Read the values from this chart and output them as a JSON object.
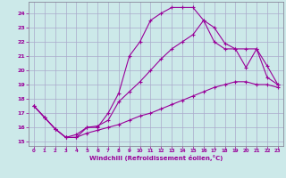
{
  "xlabel": "Windchill (Refroidissement éolien,°C)",
  "bg_color": "#cce9e9",
  "grid_color": "#aaaacc",
  "line_color": "#990099",
  "xlim": [
    -0.5,
    23.5
  ],
  "ylim": [
    14.7,
    24.8
  ],
  "yticks": [
    15,
    16,
    17,
    18,
    19,
    20,
    21,
    22,
    23,
    24
  ],
  "xticks": [
    0,
    1,
    2,
    3,
    4,
    5,
    6,
    7,
    8,
    9,
    10,
    11,
    12,
    13,
    14,
    15,
    16,
    17,
    18,
    19,
    20,
    21,
    22,
    23
  ],
  "line1_x": [
    0,
    1,
    2,
    3,
    4,
    5,
    6,
    7,
    8,
    9,
    10,
    11,
    12,
    13,
    14,
    15,
    16,
    17,
    18,
    19,
    20,
    21,
    22,
    23
  ],
  "line1_y": [
    17.5,
    16.7,
    15.9,
    15.3,
    15.3,
    16.0,
    16.0,
    17.0,
    18.4,
    21.0,
    22.0,
    23.5,
    24.0,
    24.4,
    24.4,
    24.4,
    23.5,
    23.0,
    21.9,
    21.5,
    20.2,
    21.5,
    20.3,
    19.0
  ],
  "line2_x": [
    0,
    1,
    2,
    3,
    4,
    5,
    6,
    7,
    8,
    9,
    10,
    11,
    12,
    13,
    14,
    15,
    16,
    17,
    18,
    19,
    20,
    21,
    22,
    23
  ],
  "line2_y": [
    17.5,
    16.7,
    15.9,
    15.3,
    15.5,
    16.0,
    16.1,
    16.5,
    17.8,
    18.5,
    19.2,
    20.0,
    20.8,
    21.5,
    22.0,
    22.5,
    23.5,
    22.0,
    21.5,
    21.5,
    21.5,
    21.5,
    19.5,
    19.0
  ],
  "line3_x": [
    0,
    1,
    2,
    3,
    4,
    5,
    6,
    7,
    8,
    9,
    10,
    11,
    12,
    13,
    14,
    15,
    16,
    17,
    18,
    19,
    20,
    21,
    22,
    23
  ],
  "line3_y": [
    17.5,
    16.7,
    15.9,
    15.3,
    15.3,
    15.6,
    15.8,
    16.0,
    16.2,
    16.5,
    16.8,
    17.0,
    17.3,
    17.6,
    17.9,
    18.2,
    18.5,
    18.8,
    19.0,
    19.2,
    19.2,
    19.0,
    19.0,
    18.8
  ]
}
